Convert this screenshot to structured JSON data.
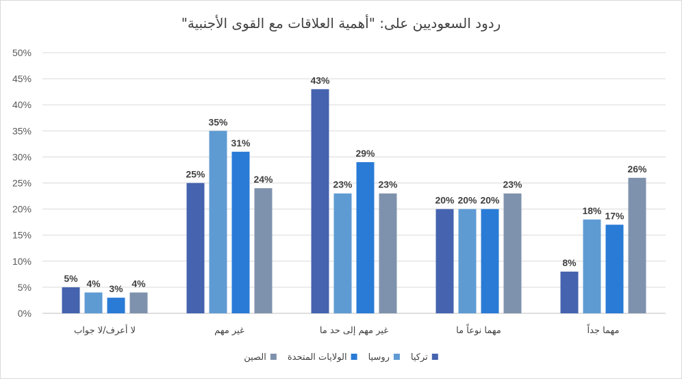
{
  "chart_data": {
    "type": "bar",
    "title": "ردود السعوديين على: \"أهمية العلاقات مع القوى الأجنبية\"",
    "categories": [
      "لا أعرف/لا جواب",
      "غير مهم",
      "غير مهم إلى حد ما",
      "مهما نوعاً ما",
      "مهما جداً"
    ],
    "series": [
      {
        "name": "تركيا",
        "color": "#4563ae",
        "values": [
          5,
          25,
          43,
          20,
          8
        ]
      },
      {
        "name": "روسيا",
        "color": "#5f9bd3",
        "values": [
          4,
          35,
          23,
          20,
          18
        ]
      },
      {
        "name": "الولايات المتحدة",
        "color": "#2a7bd6",
        "values": [
          3,
          31,
          29,
          20,
          17
        ]
      },
      {
        "name": "الصين",
        "color": "#7f92ad",
        "values": [
          4,
          24,
          23,
          23,
          26
        ]
      }
    ],
    "ylim": [
      0,
      50
    ],
    "yticks": [
      "0%",
      "5%",
      "10%",
      "15%",
      "20%",
      "25%",
      "30%",
      "35%",
      "40%",
      "45%",
      "50%"
    ],
    "value_suffix": "%",
    "grid": true,
    "legend_position": "bottom"
  }
}
